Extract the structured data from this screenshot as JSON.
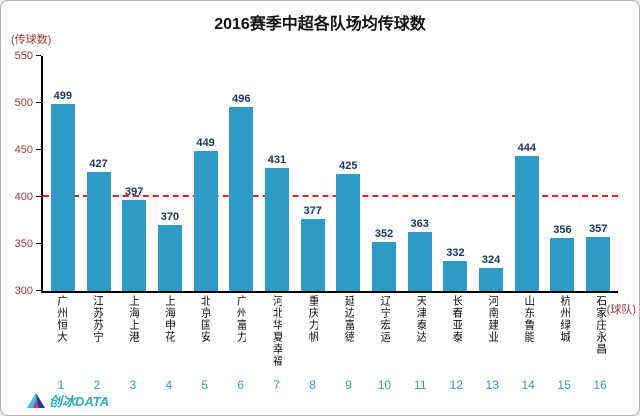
{
  "title": "2016赛季中超各队场均传球数",
  "y_axis_unit": "(传球数)",
  "x_axis_unit": "(球队)",
  "logo": {
    "text": "创冰DATA"
  },
  "chart_data": {
    "type": "bar",
    "title": "2016赛季中超各队场均传球数",
    "ylabel": "(传球数)",
    "xlabel": "(球队)",
    "categories": [
      "广州恒大",
      "江苏苏宁",
      "上海上港",
      "上海申花",
      "北京国安",
      "广州富力",
      "河北华夏幸福",
      "重庆力帆",
      "延边富德",
      "辽宁宏运",
      "天津泰达",
      "长春亚泰",
      "河南建业",
      "山东鲁能",
      "杭州绿城",
      "石家庄永昌"
    ],
    "index_labels": [
      "1",
      "2",
      "3",
      "4",
      "5",
      "6",
      "7",
      "8",
      "9",
      "10",
      "11",
      "12",
      "13",
      "14",
      "15",
      "16"
    ],
    "values": [
      499,
      427,
      397,
      370,
      449,
      496,
      431,
      377,
      425,
      352,
      363,
      332,
      324,
      444,
      356,
      357
    ],
    "ylim": [
      300,
      550
    ],
    "yticks": [
      300,
      350,
      400,
      450,
      500,
      550
    ],
    "reference_line": 400,
    "grid": false,
    "legend": "none",
    "colors": {
      "bar": "#2e9ac7",
      "reference_line": "#e02525",
      "axis_unit_text": "#a03838",
      "tick_label_text": "#a03838",
      "value_label_text": "#17375d",
      "index_text": "#2e9ac7",
      "logo_text": "#29aebe"
    }
  }
}
